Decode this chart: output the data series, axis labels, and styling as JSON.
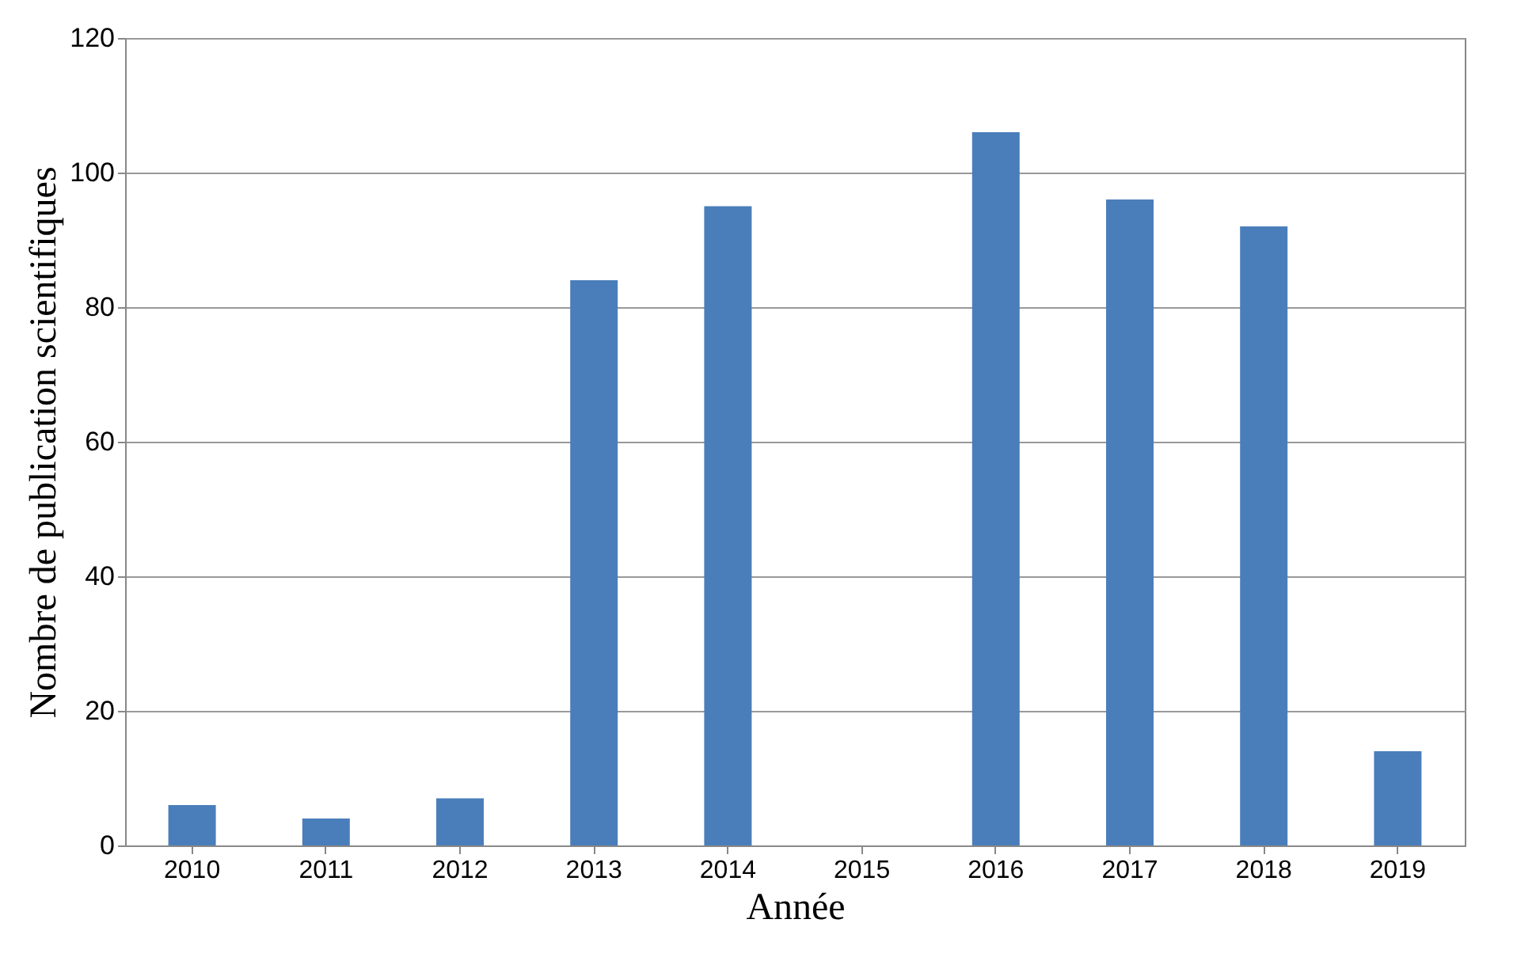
{
  "chart_data": {
    "type": "bar",
    "xlabel": "Année",
    "ylabel": "Nombre de publication scientifiques",
    "categories": [
      "2010",
      "2011",
      "2012",
      "2013",
      "2014",
      "2015",
      "2016",
      "2017",
      "2018",
      "2019"
    ],
    "series": [
      {
        "color": "#4a7ebb",
        "values": [
          6,
          4,
          7,
          84,
          95,
          0,
          106,
          96,
          92,
          14
        ]
      }
    ],
    "ylim": [
      0,
      120
    ],
    "yticks": [
      0,
      20,
      40,
      60,
      80,
      100,
      120
    ],
    "grid": "y"
  }
}
